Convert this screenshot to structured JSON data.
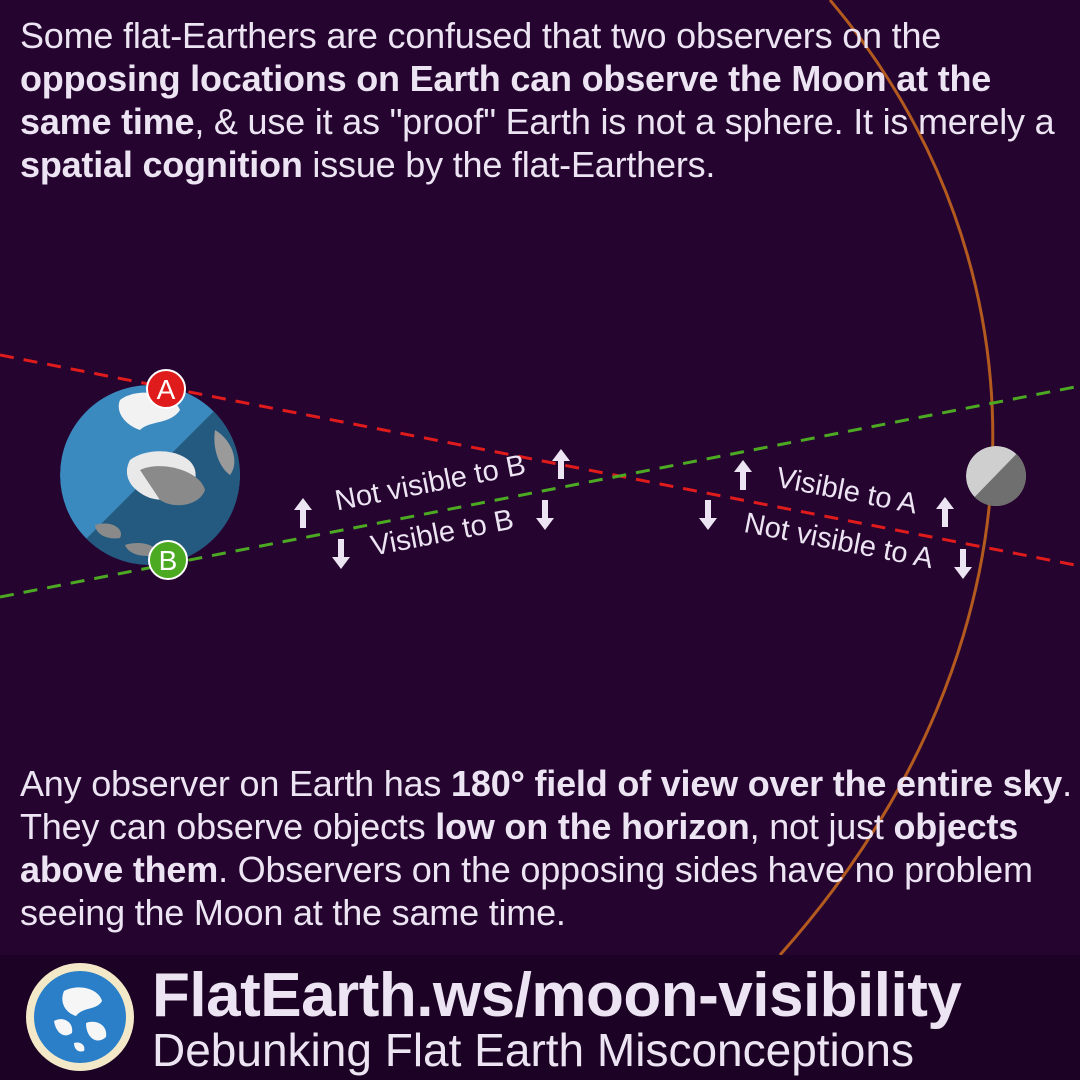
{
  "intro": {
    "t1": "Some flat-Earthers are confused that two observers on the ",
    "b1": "opposing locations on Earth can observe the Moon at the same time",
    "t2": ", & use it as \"proof\" Earth is not a sphere. It is merely a ",
    "b2": "spatial cognition",
    "t3": " issue by the flat-Earthers."
  },
  "diagram": {
    "observer_a": "A",
    "observer_b": "B",
    "label_not_visible_b": "Not visible to B",
    "label_visible_b": "Visible to B",
    "label_visible_a": "Visible to A",
    "label_not_visible_a": "Not visible to A",
    "colors": {
      "line_a": "#e01b1b",
      "line_b": "#4caa22",
      "orbit": "#b35a1f",
      "earth_day": "#3a8ac0",
      "earth_night": "#245a80",
      "moon": "#9a9a9a"
    }
  },
  "outro": {
    "t1": "Any observer on Earth has ",
    "b1": "180° field of view over the entire sky",
    "t2": ". They can observe objects ",
    "b2": "low on the horizon",
    "t3": ", not just ",
    "b3": "objects above them",
    "t4": ". Observers on the opposing sides have no problem seeing the Moon at the same time."
  },
  "footer": {
    "url": "FlatEarth.ws/moon-visibility",
    "subtitle": "Debunking Flat Earth Misconceptions",
    "logo_icon": "earth-globe-icon"
  }
}
